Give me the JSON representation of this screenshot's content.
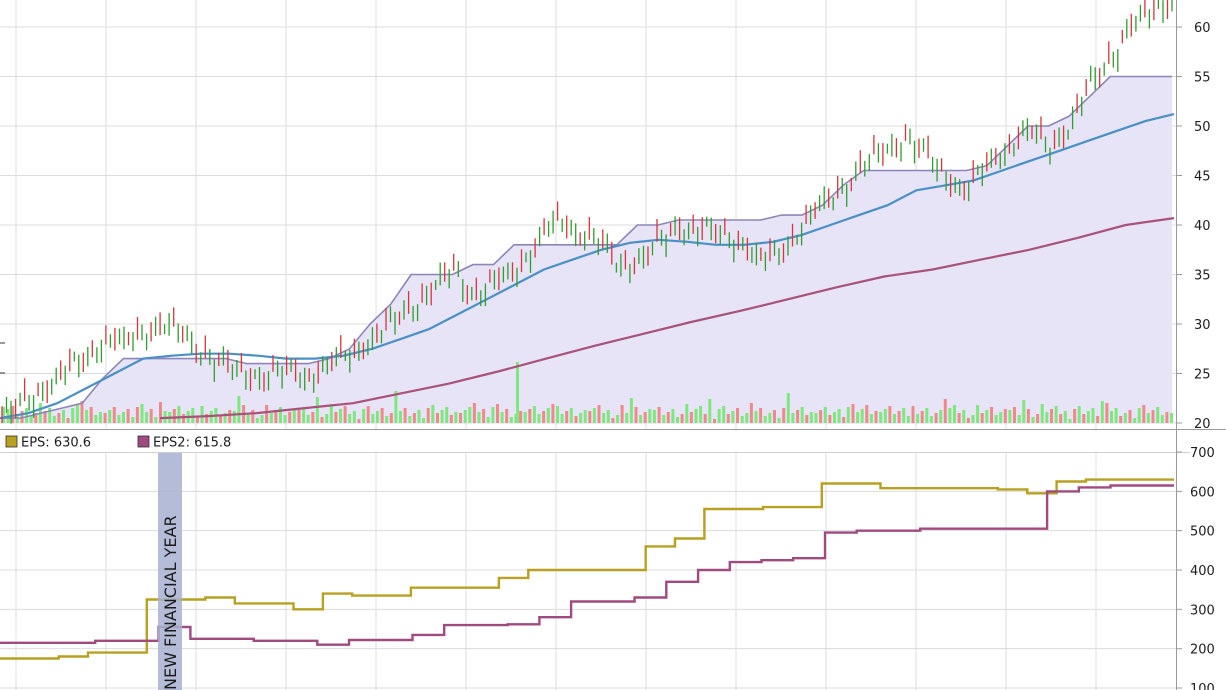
{
  "chart_data": [
    {
      "type": "candlestick",
      "title": "",
      "ylim": [
        20,
        65
      ],
      "y_ticks": [
        20,
        25,
        30,
        35,
        40,
        45,
        50,
        55,
        60
      ],
      "grid": true,
      "series": [
        {
          "kind": "price_close",
          "color": "#2e9e2e",
          "values": [
            20.5,
            22,
            23.5,
            25,
            26.5,
            28.5,
            28,
            29.5,
            30,
            28.5,
            27,
            25.5,
            25,
            24.8,
            25.2,
            24.8,
            26,
            27,
            28.5,
            30,
            32,
            33.5,
            35.5,
            33,
            34,
            35.5,
            38,
            40.5,
            39.5,
            38.5,
            36,
            36.5,
            38,
            40,
            39.5,
            39,
            38.5,
            36.2,
            37.5,
            40,
            42,
            44,
            46,
            47.5,
            49,
            47,
            45,
            43.5,
            46,
            48,
            49.5,
            48,
            50,
            54,
            57,
            60,
            61.5,
            63
          ]
        },
        {
          "kind": "trailing_high",
          "color": "#8c86b8",
          "values": [
            20.5,
            20.5,
            21,
            21.5,
            22,
            24.5,
            26.5,
            26.5,
            26.5,
            26.5,
            26.5,
            26.5,
            26,
            26,
            26,
            26,
            26.5,
            27.5,
            30,
            32,
            35,
            35,
            35,
            36,
            36,
            38,
            38,
            38,
            38,
            38,
            38,
            40,
            40,
            40.5,
            40.5,
            40.5,
            40.5,
            40.5,
            41,
            41,
            42,
            44,
            45.5,
            45.5,
            45.5,
            45.5,
            45.5,
            45.5,
            46,
            48,
            50,
            50,
            51,
            53,
            55,
            55,
            55,
            55
          ]
        },
        {
          "kind": "moving_average_short",
          "color": "#4a90c8",
          "values": [
            20.5,
            21,
            22,
            23.5,
            25,
            26.5,
            26.8,
            27,
            27,
            26.8,
            26.5,
            26.5,
            26.8,
            27.5,
            28.5,
            29.5,
            31,
            32.5,
            34,
            35.5,
            36.5,
            37.5,
            38.2,
            38.5,
            38.3,
            38,
            38,
            38.3,
            39,
            40,
            41,
            42,
            43.5,
            44,
            44.5,
            45.5,
            46.5,
            47.5,
            48.5,
            49.5,
            50.5,
            51.2
          ]
        },
        {
          "kind": "moving_average_long",
          "color": "#a8527a",
          "values": [
            20.5,
            20.7,
            21,
            21.5,
            22,
            23,
            24,
            25.2,
            26.5,
            27.8,
            29,
            30.2,
            31.3,
            32.5,
            33.7,
            34.8,
            35.5,
            36.5,
            37.5,
            38.7,
            40,
            40.7
          ]
        },
        {
          "kind": "volume",
          "color_up": "#7ee87e",
          "color_down": "#f08a8a",
          "values": [
            1,
            1,
            1,
            1,
            1,
            1,
            1,
            1,
            1,
            1,
            1,
            1,
            1,
            1,
            1,
            1,
            1,
            1,
            1,
            1,
            1,
            1,
            1,
            1,
            1,
            1,
            1,
            1,
            1,
            1,
            1,
            1,
            1,
            1,
            1,
            1,
            1,
            1,
            1,
            1,
            1,
            1,
            1,
            1,
            1,
            1,
            1,
            1,
            1,
            1,
            1,
            1,
            1,
            1,
            1,
            1,
            1,
            1,
            1,
            1,
            1,
            1,
            1,
            1,
            1,
            1,
            1,
            1,
            1,
            1,
            1,
            1,
            1,
            1,
            1,
            1,
            1,
            1,
            1,
            1,
            1,
            1,
            1,
            1,
            1,
            1,
            1,
            1,
            1,
            1,
            1,
            1,
            1,
            1,
            1,
            1,
            1,
            1,
            1,
            1,
            1,
            1,
            1,
            1,
            1,
            1,
            1,
            1,
            1,
            1,
            1,
            1,
            1,
            1,
            1,
            1,
            1,
            1,
            1,
            1,
            1,
            1,
            1,
            1,
            1,
            1,
            1,
            1,
            1,
            1,
            1,
            1,
            1,
            1,
            1,
            1,
            1,
            1,
            1,
            1,
            1,
            1,
            1,
            1,
            1,
            1,
            1,
            1,
            1,
            1,
            1,
            1,
            1,
            1,
            1,
            1,
            1,
            1,
            1,
            1,
            1,
            1,
            1,
            1,
            1,
            1,
            1,
            1,
            1,
            1,
            1,
            1,
            1,
            1,
            1,
            1,
            1,
            1,
            1,
            1,
            1,
            1,
            1,
            1,
            1,
            1,
            1,
            1,
            1,
            1,
            1,
            1,
            1,
            1,
            1,
            1,
            1,
            1,
            1,
            1,
            1,
            1,
            1,
            1,
            1,
            1,
            1,
            1,
            1,
            1,
            1,
            1,
            1,
            1,
            1,
            1,
            1,
            1,
            1,
            1,
            1,
            1,
            1,
            1,
            1,
            1,
            1,
            1,
            1,
            1,
            1,
            1,
            1,
            1,
            1,
            1,
            1,
            1,
            1,
            1,
            1,
            1,
            1,
            1,
            1,
            1,
            1,
            1,
            1,
            1,
            1,
            1,
            1,
            1
          ]
        }
      ]
    },
    {
      "type": "line",
      "title": "",
      "ylim": [
        100,
        700
      ],
      "y_ticks": [
        100,
        200,
        300,
        400,
        500,
        600,
        700
      ],
      "grid": true,
      "legend": [
        {
          "label": "EPS: 630.6",
          "color": "#b8a020"
        },
        {
          "label": "EPS2: 615.8",
          "color": "#a04a80"
        }
      ],
      "annotation": "NEW FINANCIAL YEAR",
      "series": [
        {
          "name": "EPS",
          "color": "#b8a020",
          "values": [
            175,
            175,
            180,
            190,
            190,
            325,
            325,
            330,
            315,
            315,
            300,
            340,
            335,
            335,
            355,
            355,
            355,
            380,
            400,
            400,
            400,
            400,
            460,
            480,
            555,
            555,
            560,
            560,
            620,
            620,
            608,
            608,
            608,
            608,
            605,
            595,
            625,
            630,
            630,
            630,
            630
          ]
        },
        {
          "name": "EPS2",
          "color": "#a04a80",
          "values": [
            215,
            215,
            215,
            220,
            220,
            255,
            225,
            225,
            220,
            220,
            210,
            222,
            222,
            235,
            260,
            260,
            262,
            280,
            320,
            320,
            330,
            370,
            400,
            420,
            425,
            430,
            495,
            500,
            500,
            505,
            505,
            505,
            505,
            600,
            610,
            615,
            615,
            615
          ]
        }
      ]
    }
  ]
}
